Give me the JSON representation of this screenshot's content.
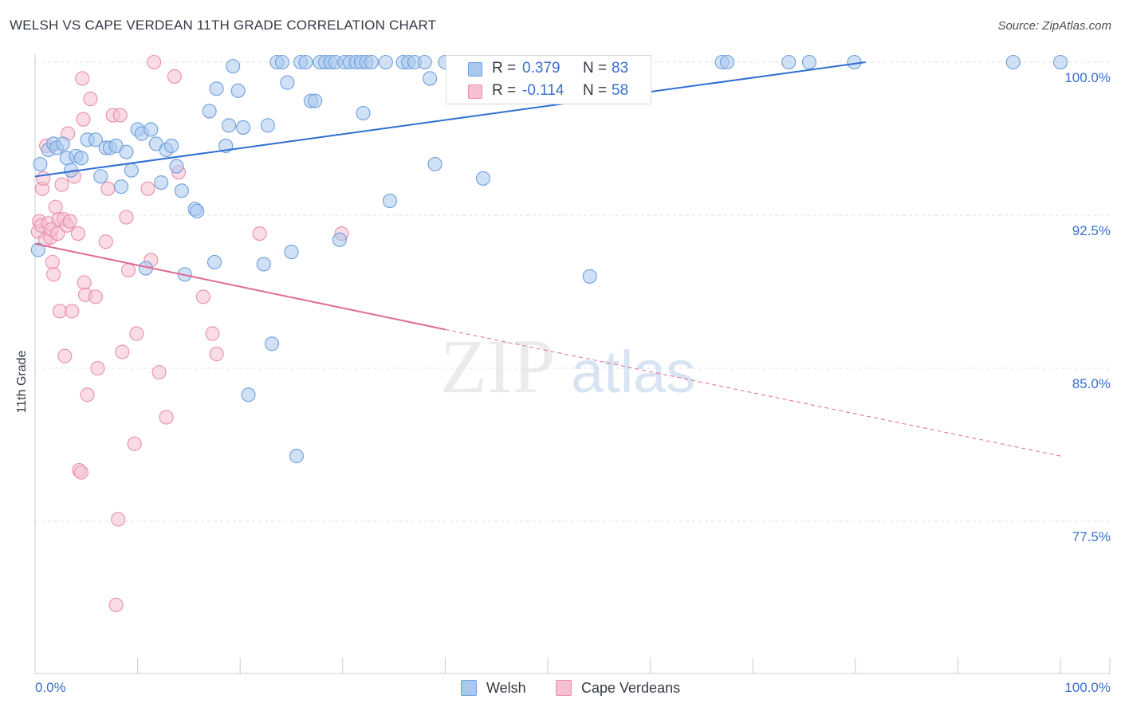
{
  "header": {
    "title": "WELSH VS CAPE VERDEAN 11TH GRADE CORRELATION CHART",
    "source": "Source: ZipAtlas.com"
  },
  "legend": {
    "welsh": {
      "r_label": "R =",
      "r_value": "0.379",
      "n_label": "N =",
      "n_value": "83"
    },
    "cape": {
      "r_label": "R =",
      "r_value": "-0.114",
      "n_label": "N =",
      "n_value": "58"
    }
  },
  "bottom_legend": {
    "welsh": "Welsh",
    "cape": "Cape Verdeans"
  },
  "colors": {
    "welsh_fill": "#aac8ee",
    "welsh_stroke": "#6e9fdc",
    "welsh_line": "#2f6fcf",
    "cape_fill": "#f6c0d0",
    "cape_stroke": "#e98fac",
    "cape_line": "#e06a95",
    "value_text": "#3a6fc9",
    "grid": "#dfe2e6",
    "axis": "#c8ccd2"
  },
  "watermark": {
    "zip": "ZIP",
    "atlas": "atlas"
  },
  "chart_data": {
    "type": "scatter",
    "title": "WELSH VS CAPE VERDEAN 11TH GRADE CORRELATION CHART",
    "xlabel": "",
    "ylabel": "11th Grade",
    "xlim": [
      0,
      100
    ],
    "ylim": [
      70.0,
      101.0
    ],
    "x_tick_labels": [
      "0.0%",
      "100.0%"
    ],
    "y_ticks": [
      77.5,
      85.0,
      92.5,
      100.0
    ],
    "y_tick_labels": [
      "77.5%",
      "85.0%",
      "92.5%",
      "100.0%"
    ],
    "grid": true,
    "series": [
      {
        "name": "Welsh",
        "r": 0.379,
        "n": 83,
        "trend": {
          "x": [
            0,
            81
          ],
          "y": [
            94.4,
            100.0
          ],
          "dashed_to": null
        },
        "points": [
          [
            0.5,
            95.0
          ],
          [
            0.3,
            90.8
          ],
          [
            1.3,
            95.7
          ],
          [
            1.8,
            96.0
          ],
          [
            2.1,
            95.8
          ],
          [
            2.7,
            96.0
          ],
          [
            3.1,
            95.3
          ],
          [
            3.5,
            94.7
          ],
          [
            4.0,
            95.4
          ],
          [
            4.5,
            95.3
          ],
          [
            5.1,
            96.2
          ],
          [
            5.9,
            96.2
          ],
          [
            6.4,
            94.4
          ],
          [
            6.9,
            95.8
          ],
          [
            7.3,
            95.8
          ],
          [
            7.9,
            95.9
          ],
          [
            8.4,
            93.9
          ],
          [
            8.9,
            95.6
          ],
          [
            9.4,
            94.7
          ],
          [
            10.0,
            96.7
          ],
          [
            10.4,
            96.5
          ],
          [
            10.8,
            89.9
          ],
          [
            11.3,
            96.7
          ],
          [
            11.8,
            96.0
          ],
          [
            12.3,
            94.1
          ],
          [
            12.8,
            95.7
          ],
          [
            13.3,
            95.9
          ],
          [
            13.8,
            94.9
          ],
          [
            14.3,
            93.7
          ],
          [
            14.6,
            89.6
          ],
          [
            15.6,
            92.8
          ],
          [
            15.8,
            92.7
          ],
          [
            17.0,
            97.6
          ],
          [
            17.5,
            90.2
          ],
          [
            17.7,
            98.7
          ],
          [
            18.6,
            95.9
          ],
          [
            18.9,
            96.9
          ],
          [
            19.3,
            99.8
          ],
          [
            19.8,
            98.6
          ],
          [
            20.3,
            96.8
          ],
          [
            20.8,
            83.7
          ],
          [
            22.3,
            90.1
          ],
          [
            22.7,
            96.9
          ],
          [
            23.1,
            86.2
          ],
          [
            23.6,
            100.0
          ],
          [
            24.1,
            100.0
          ],
          [
            24.6,
            99.0
          ],
          [
            25.0,
            90.7
          ],
          [
            25.5,
            80.7
          ],
          [
            25.9,
            100.0
          ],
          [
            26.4,
            100.0
          ],
          [
            26.9,
            98.1
          ],
          [
            27.3,
            98.1
          ],
          [
            27.8,
            100.0
          ],
          [
            28.3,
            100.0
          ],
          [
            28.8,
            100.0
          ],
          [
            29.3,
            100.0
          ],
          [
            29.7,
            91.3
          ],
          [
            30.2,
            100.0
          ],
          [
            30.7,
            100.0
          ],
          [
            31.3,
            100.0
          ],
          [
            31.8,
            100.0
          ],
          [
            32.0,
            97.5
          ],
          [
            32.3,
            100.0
          ],
          [
            32.8,
            100.0
          ],
          [
            34.2,
            100.0
          ],
          [
            34.6,
            93.2
          ],
          [
            35.9,
            100.0
          ],
          [
            36.4,
            100.0
          ],
          [
            37.0,
            100.0
          ],
          [
            38.0,
            100.0
          ],
          [
            38.5,
            99.2
          ],
          [
            39.0,
            95.0
          ],
          [
            40.0,
            100.0
          ],
          [
            43.7,
            94.3
          ],
          [
            54.1,
            89.5
          ],
          [
            67.0,
            100.0
          ],
          [
            67.5,
            100.0
          ],
          [
            73.5,
            100.0
          ],
          [
            75.5,
            100.0
          ],
          [
            79.9,
            100.0
          ],
          [
            95.4,
            100.0
          ],
          [
            100.0,
            100.0
          ]
        ]
      },
      {
        "name": "Cape Verdeans",
        "r": -0.114,
        "n": 58,
        "trend": {
          "x": [
            0,
            40
          ],
          "y": [
            91.1,
            86.9
          ],
          "dashed_to": [
            100,
            80.7
          ]
        },
        "points": [
          [
            0.3,
            91.7
          ],
          [
            0.4,
            92.2
          ],
          [
            0.6,
            92.0
          ],
          [
            0.7,
            93.8
          ],
          [
            0.8,
            94.3
          ],
          [
            1.0,
            91.3
          ],
          [
            1.1,
            95.9
          ],
          [
            1.3,
            92.1
          ],
          [
            1.5,
            91.4
          ],
          [
            1.6,
            91.8
          ],
          [
            1.7,
            90.2
          ],
          [
            1.8,
            89.6
          ],
          [
            2.0,
            92.9
          ],
          [
            2.2,
            91.6
          ],
          [
            2.3,
            92.3
          ],
          [
            2.4,
            87.8
          ],
          [
            2.6,
            94.0
          ],
          [
            2.8,
            92.3
          ],
          [
            2.9,
            85.6
          ],
          [
            3.1,
            92.0
          ],
          [
            3.2,
            96.5
          ],
          [
            3.4,
            92.2
          ],
          [
            3.6,
            87.8
          ],
          [
            3.8,
            94.4
          ],
          [
            4.2,
            91.6
          ],
          [
            4.3,
            80.0
          ],
          [
            4.5,
            79.9
          ],
          [
            4.6,
            99.2
          ],
          [
            4.7,
            97.2
          ],
          [
            4.8,
            89.2
          ],
          [
            4.9,
            88.6
          ],
          [
            5.1,
            83.7
          ],
          [
            5.4,
            98.2
          ],
          [
            5.9,
            88.5
          ],
          [
            6.1,
            85.0
          ],
          [
            6.9,
            91.2
          ],
          [
            7.1,
            93.8
          ],
          [
            7.6,
            97.4
          ],
          [
            7.9,
            73.4
          ],
          [
            8.1,
            77.6
          ],
          [
            8.3,
            97.4
          ],
          [
            8.5,
            85.8
          ],
          [
            8.9,
            92.4
          ],
          [
            9.1,
            89.8
          ],
          [
            9.7,
            81.3
          ],
          [
            9.9,
            86.7
          ],
          [
            11.0,
            93.8
          ],
          [
            11.3,
            90.3
          ],
          [
            11.6,
            100.0
          ],
          [
            12.1,
            84.8
          ],
          [
            12.8,
            82.6
          ],
          [
            13.6,
            99.3
          ],
          [
            14.0,
            94.6
          ],
          [
            16.4,
            88.5
          ],
          [
            17.3,
            86.7
          ],
          [
            17.7,
            85.7
          ],
          [
            21.9,
            91.6
          ],
          [
            29.9,
            91.6
          ]
        ]
      }
    ]
  }
}
